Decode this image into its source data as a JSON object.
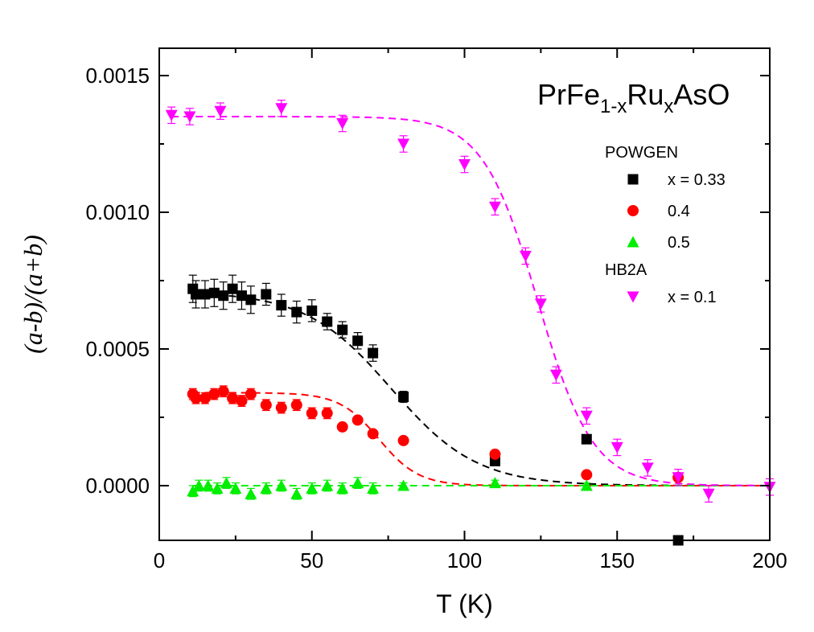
{
  "chart_data": {
    "type": "scatter",
    "title_parts": {
      "base1": "PrFe",
      "sub1": "1-x",
      "base2": "Ru",
      "sub2": "x",
      "base3": "AsO"
    },
    "xlabel": "T (K)",
    "ylabel": "(a-b)/(a+b)",
    "xlim": [
      0,
      200
    ],
    "ylim": [
      -0.0002,
      0.0016
    ],
    "xticks": [
      0,
      50,
      100,
      150,
      200
    ],
    "xtick_labels": [
      "0",
      "50",
      "100",
      "150",
      "200"
    ],
    "yticks": [
      0.0,
      0.0005,
      0.001,
      0.0015
    ],
    "ytick_labels": [
      "0.0000",
      "0.0005",
      "0.0010",
      "0.0015"
    ],
    "legend": {
      "groups": [
        {
          "header": "POWGEN",
          "entries": [
            "x = 0.33",
            "0.4",
            "0.5"
          ]
        },
        {
          "header": "HB2A",
          "entries": [
            "x = 0.1"
          ]
        }
      ]
    },
    "series": [
      {
        "name": "x = 0.33",
        "group": "POWGEN",
        "marker": "square",
        "color": "#000000",
        "x": [
          11,
          12,
          15,
          18,
          21,
          24,
          27,
          30,
          35,
          40,
          45,
          50,
          55,
          60,
          65,
          70,
          80,
          110,
          140,
          170
        ],
        "y": [
          0.00072,
          0.0007,
          0.0007,
          0.000705,
          0.000695,
          0.00072,
          0.000695,
          0.00068,
          0.0007,
          0.00066,
          0.000635,
          0.00064,
          0.0006,
          0.00057,
          0.00053,
          0.000485,
          0.000325,
          9e-05,
          0.00017,
          -0.0002
        ],
        "err": [
          5e-05,
          5e-05,
          5e-05,
          5e-05,
          5e-05,
          5e-05,
          5e-05,
          5e-05,
          4e-05,
          4e-05,
          4e-05,
          4e-05,
          3e-05,
          3e-05,
          3e-05,
          3e-05,
          2e-05,
          1e-05,
          1e-05,
          1e-05
        ],
        "fit": {
          "plateau": 0.00071,
          "tc": 76,
          "w": 14
        }
      },
      {
        "name": "0.4",
        "group": "POWGEN",
        "marker": "circle",
        "color": "#ff0000",
        "x": [
          11,
          12,
          15,
          18,
          21,
          24,
          27,
          30,
          35,
          40,
          45,
          50,
          55,
          60,
          65,
          70,
          80,
          110,
          140,
          170
        ],
        "y": [
          0.000335,
          0.00032,
          0.00032,
          0.000335,
          0.000345,
          0.00032,
          0.00031,
          0.000335,
          0.000295,
          0.000285,
          0.000295,
          0.000265,
          0.000265,
          0.000215,
          0.00024,
          0.00019,
          0.000165,
          0.000115,
          4e-05,
          3e-05
        ],
        "err": [
          2e-05,
          2e-05,
          2e-05,
          2e-05,
          2e-05,
          2e-05,
          2e-05,
          2e-05,
          2e-05,
          2e-05,
          2e-05,
          2e-05,
          2e-05,
          1e-05,
          1e-05,
          1e-05,
          1e-05,
          1e-05,
          1e-05,
          1e-05
        ],
        "fit": {
          "plateau": 0.00034,
          "tc": 72,
          "w": 6.5
        }
      },
      {
        "name": "0.5",
        "group": "POWGEN",
        "marker": "triangle-up",
        "color": "#00ee00",
        "x": [
          11,
          13,
          16,
          19,
          22,
          25,
          30,
          35,
          40,
          45,
          50,
          55,
          60,
          65,
          70,
          80,
          110,
          140
        ],
        "y": [
          -2e-05,
          0.0,
          0.0,
          -1e-05,
          1e-05,
          -1e-05,
          -3e-05,
          -1e-05,
          0.0,
          -3e-05,
          -1e-05,
          0.0,
          -1e-05,
          1e-05,
          -1e-05,
          0.0,
          1e-05,
          0.0
        ],
        "err": [
          2e-05,
          2e-05,
          2e-05,
          2e-05,
          2e-05,
          2e-05,
          2e-05,
          2e-05,
          2e-05,
          2e-05,
          2e-05,
          2e-05,
          2e-05,
          2e-05,
          2e-05,
          1e-05,
          1e-05,
          1e-05
        ],
        "fit": {
          "plateau": 0.0,
          "tc": 100,
          "w": 10
        }
      },
      {
        "name": "x = 0.1",
        "group": "HB2A",
        "marker": "triangle-down",
        "color": "#ff00ff",
        "x": [
          4,
          10,
          20,
          40,
          60,
          80,
          100,
          110,
          120,
          125,
          130,
          140,
          150,
          160,
          170,
          180,
          200
        ],
        "y": [
          0.001355,
          0.00135,
          0.00137,
          0.00138,
          0.001325,
          0.00125,
          0.001175,
          0.00102,
          0.00084,
          0.000665,
          0.000405,
          0.000255,
          0.00014,
          6.5e-05,
          3e-05,
          -3e-05,
          -5e-06
        ],
        "err": [
          3e-05,
          3e-05,
          3e-05,
          3e-05,
          3e-05,
          3e-05,
          3e-05,
          3e-05,
          3e-05,
          3e-05,
          3e-05,
          3e-05,
          3e-05,
          3e-05,
          3e-05,
          3e-05,
          3e-05
        ],
        "fit": {
          "plateau": 0.00135,
          "tc": 124,
          "w": 9
        }
      }
    ]
  }
}
